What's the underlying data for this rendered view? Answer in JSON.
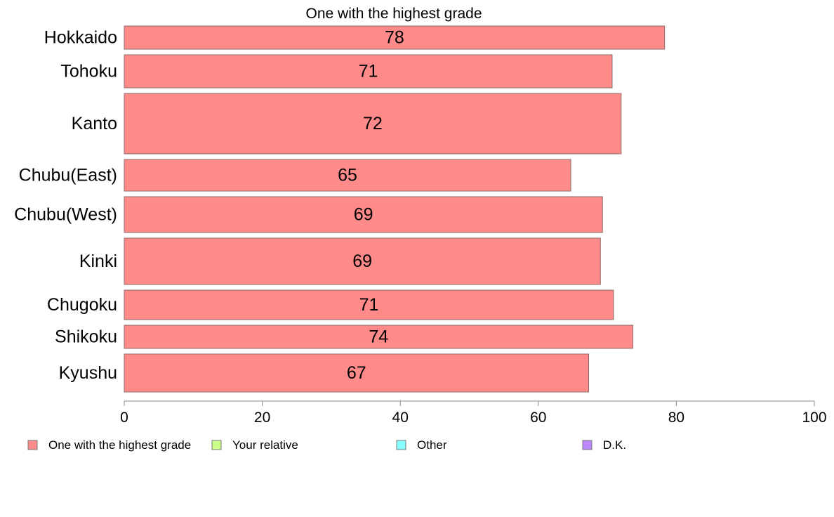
{
  "chart_data": {
    "type": "bar",
    "orientation": "horizontal",
    "title": "One with the highest grade",
    "xlabel": "",
    "ylabel": "",
    "categories": [
      "Hokkaido",
      "Tohoku",
      "Kanto",
      "Chubu(East)",
      "Chubu(West)",
      "Kinki",
      "Chugoku",
      "Shikoku",
      "Kyushu"
    ],
    "series": [
      {
        "name": "One with the highest grade",
        "color": "#ff8a8a",
        "values": [
          78.3,
          70.7,
          72.0,
          64.7,
          69.3,
          69.0,
          70.9,
          73.7,
          67.3
        ],
        "labels": [
          "78",
          "71",
          "72",
          "65",
          "69",
          "69",
          "71",
          "74",
          "67"
        ]
      }
    ],
    "xlim": [
      0,
      100
    ],
    "xticks": [
      "0",
      "20",
      "40",
      "60",
      "80",
      "100"
    ],
    "grid": false,
    "legend": {
      "placement": "bottom",
      "items": [
        {
          "label": "One with the highest grade",
          "color": "#ff8a8a"
        },
        {
          "label": "Your relative",
          "color": "#ccff88"
        },
        {
          "label": "Other",
          "color": "#88ffff"
        },
        {
          "label": "D.K.",
          "color": "#bb88ff"
        }
      ]
    }
  }
}
